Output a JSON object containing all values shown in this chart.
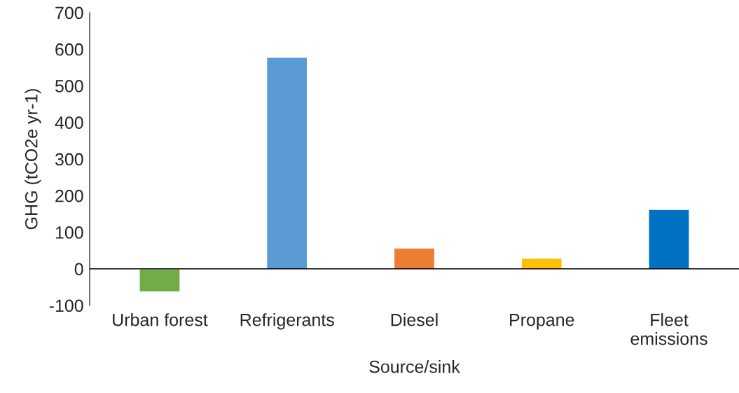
{
  "chart_data": {
    "type": "bar",
    "xlabel": "Source/sink",
    "ylabel": "GHG (tCO2e yr-1)",
    "categories": [
      "Urban forest",
      "Refrigerants",
      "Diesel",
      "Propane",
      "Fleet\nemissions"
    ],
    "values": [
      -63,
      578,
      57,
      29,
      162
    ],
    "colors": [
      "#70ad47",
      "#5b9bd5",
      "#ed7d31",
      "#ffc000",
      "#0070c0"
    ],
    "ylim": [
      -100,
      700
    ],
    "yticks": [
      -100,
      0,
      100,
      200,
      300,
      400,
      500,
      600,
      700
    ],
    "grid": false,
    "legend": false
  }
}
